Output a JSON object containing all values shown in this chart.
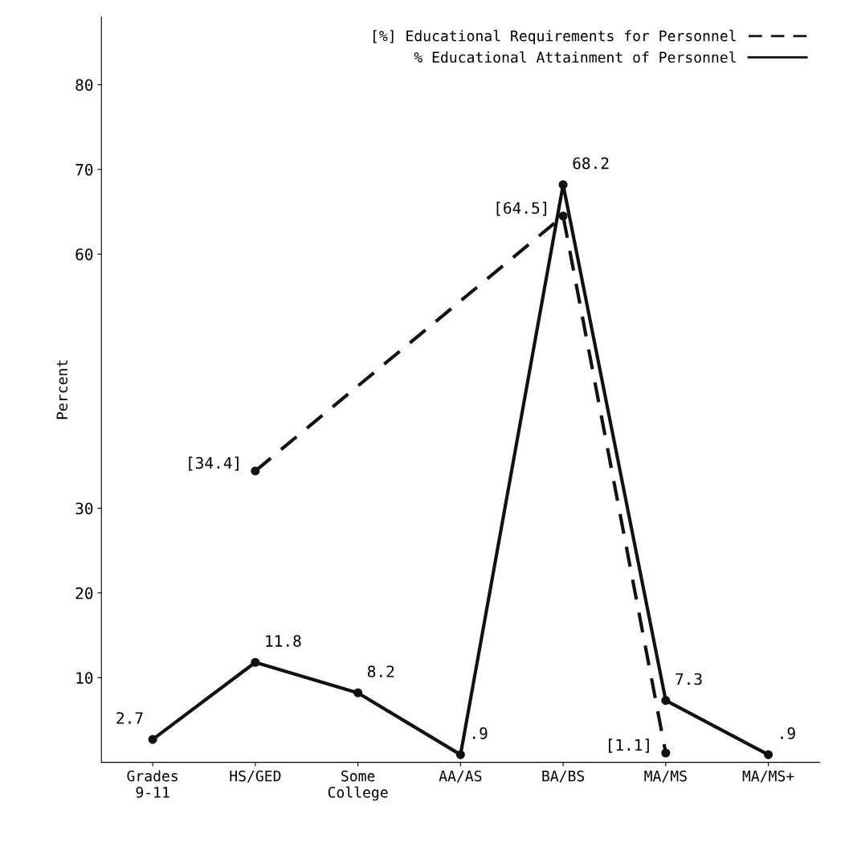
{
  "chart_data": {
    "type": "line",
    "ylabel": "Percent",
    "categories": [
      "Grades\n9-11",
      "HS/GED",
      "Some\nCollege",
      "AA/AS",
      "BA/BS",
      "MA/MS",
      "MA/MS+"
    ],
    "series": [
      {
        "name": "[%] Educational Requirements for Personnel",
        "color": "#111111",
        "line_style": "dashed",
        "values": [
          null,
          34.4,
          null,
          null,
          64.5,
          1.1,
          null
        ],
        "value_labels": [
          null,
          "[34.4]",
          null,
          null,
          "[64.5]",
          "[1.1]",
          null
        ]
      },
      {
        "name": "% Educational Attainment of Personnel",
        "color": "#111111",
        "line_style": "solid",
        "values": [
          2.7,
          11.8,
          8.2,
          0.9,
          68.2,
          7.3,
          0.9
        ],
        "value_labels": [
          "2.7",
          "11.8",
          "8.2",
          ".9",
          "68.2",
          "7.3",
          ".9"
        ]
      }
    ],
    "ylim": [
      0,
      88
    ],
    "yticks": [
      10,
      20,
      30,
      60,
      70,
      80
    ],
    "marker": "circle",
    "legend": "top right",
    "grid": false
  }
}
